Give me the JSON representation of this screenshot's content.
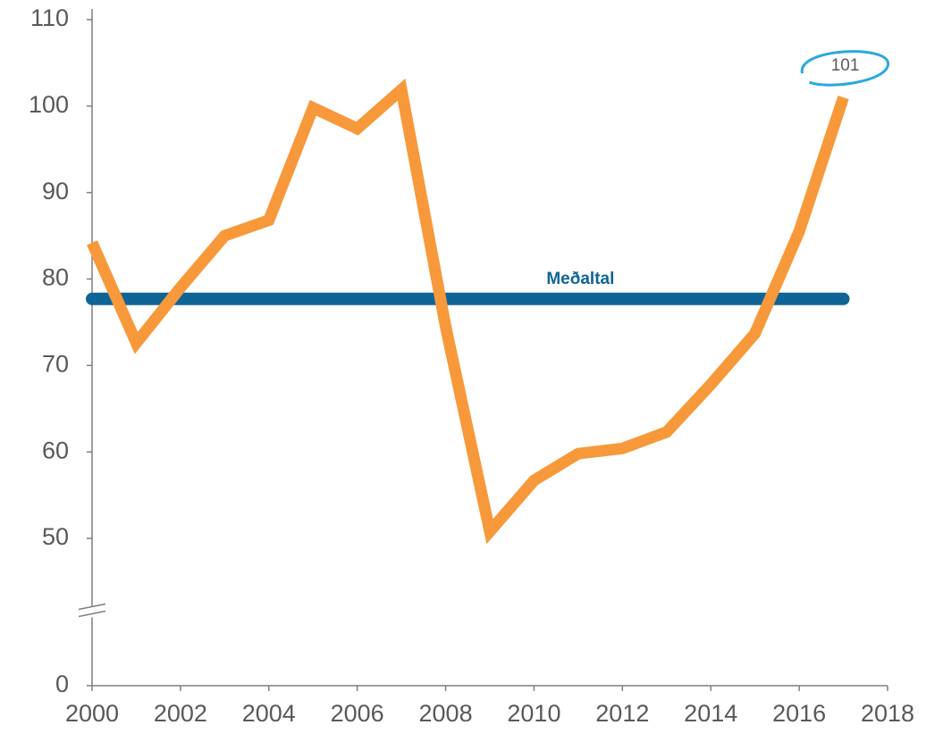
{
  "chart_data": {
    "type": "line",
    "x": [
      2000,
      2001,
      2002,
      2003,
      2004,
      2005,
      2006,
      2007,
      2008,
      2009,
      2010,
      2011,
      2012,
      2013,
      2014,
      2015,
      2016,
      2017
    ],
    "series": [
      {
        "color": "#f7993a",
        "values": [
          84.2,
          72.6,
          79,
          85,
          86.8,
          99.8,
          97.4,
          101.9,
          74.5,
          50.8,
          56.7,
          59.8,
          60.4,
          62.3,
          67.8,
          73.7,
          85.5,
          101
        ]
      }
    ],
    "average": {
      "name": "Meðaltal",
      "value": 77.7,
      "color": "#0f6496"
    },
    "label_last": true,
    "label_circle_color": "#29a8e0",
    "xlim": [
      2000,
      2018
    ],
    "xticks": [
      2000,
      2002,
      2004,
      2006,
      2008,
      2010,
      2012,
      2014,
      2016,
      2018
    ],
    "ylim": [
      0,
      110
    ],
    "yticks": [
      0,
      50,
      60,
      70,
      80,
      90,
      100,
      110
    ],
    "axis_break": true
  }
}
